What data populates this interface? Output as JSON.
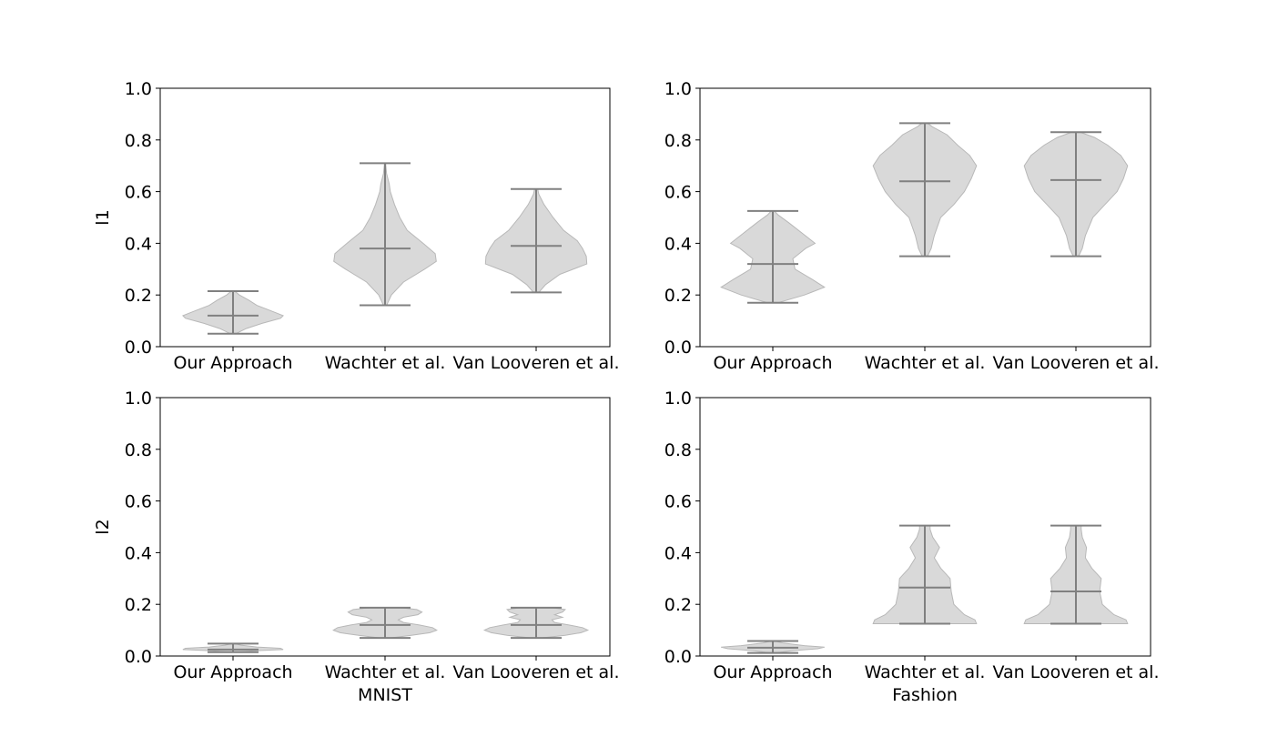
{
  "chart_data": [
    {
      "type": "violin",
      "row": 0,
      "col": 0,
      "categories": [
        "Our Approach",
        "Wachter et al.",
        "Van Looveren et al."
      ],
      "ylabel": "l1",
      "xlabel": "",
      "ylim": [
        0,
        1.0
      ],
      "yticks": [
        "0.0",
        "0.2",
        "0.4",
        "0.6",
        "0.8",
        "1.0"
      ],
      "series": [
        {
          "min": 0.05,
          "median": 0.12,
          "max": 0.215,
          "density": [
            [
              0.05,
              0.05
            ],
            [
              0.07,
              0.25
            ],
            [
              0.09,
              0.55
            ],
            [
              0.11,
              0.9
            ],
            [
              0.12,
              0.95
            ],
            [
              0.14,
              0.7
            ],
            [
              0.16,
              0.45
            ],
            [
              0.18,
              0.3
            ],
            [
              0.2,
              0.12
            ],
            [
              0.215,
              0.03
            ]
          ]
        },
        {
          "min": 0.16,
          "median": 0.38,
          "max": 0.71,
          "density": [
            [
              0.16,
              0.03
            ],
            [
              0.2,
              0.12
            ],
            [
              0.25,
              0.35
            ],
            [
              0.3,
              0.75
            ],
            [
              0.33,
              0.97
            ],
            [
              0.36,
              0.95
            ],
            [
              0.4,
              0.72
            ],
            [
              0.45,
              0.42
            ],
            [
              0.5,
              0.28
            ],
            [
              0.55,
              0.18
            ],
            [
              0.6,
              0.1
            ],
            [
              0.63,
              0.08
            ],
            [
              0.67,
              0.03
            ],
            [
              0.71,
              0.01
            ]
          ]
        },
        {
          "min": 0.21,
          "median": 0.39,
          "max": 0.61,
          "density": [
            [
              0.21,
              0.05
            ],
            [
              0.24,
              0.18
            ],
            [
              0.28,
              0.45
            ],
            [
              0.32,
              0.96
            ],
            [
              0.35,
              0.95
            ],
            [
              0.38,
              0.88
            ],
            [
              0.41,
              0.78
            ],
            [
              0.45,
              0.52
            ],
            [
              0.5,
              0.32
            ],
            [
              0.55,
              0.15
            ],
            [
              0.59,
              0.05
            ],
            [
              0.61,
              0.03
            ]
          ]
        }
      ]
    },
    {
      "type": "violin",
      "row": 0,
      "col": 1,
      "categories": [
        "Our Approach",
        "Wachter et al.",
        "Van Looveren et al."
      ],
      "ylabel": "",
      "xlabel": "",
      "ylim": [
        0,
        1.0
      ],
      "yticks": [
        "0.0",
        "0.2",
        "0.4",
        "0.6",
        "0.8",
        "1.0"
      ],
      "series": [
        {
          "min": 0.17,
          "median": 0.32,
          "max": 0.525,
          "density": [
            [
              0.17,
              0.1
            ],
            [
              0.2,
              0.6
            ],
            [
              0.23,
              0.98
            ],
            [
              0.26,
              0.75
            ],
            [
              0.3,
              0.42
            ],
            [
              0.34,
              0.38
            ],
            [
              0.38,
              0.62
            ],
            [
              0.4,
              0.8
            ],
            [
              0.44,
              0.55
            ],
            [
              0.48,
              0.3
            ],
            [
              0.51,
              0.1
            ],
            [
              0.525,
              0.03
            ]
          ]
        },
        {
          "min": 0.35,
          "median": 0.64,
          "max": 0.865,
          "density": [
            [
              0.35,
              0.05
            ],
            [
              0.38,
              0.12
            ],
            [
              0.43,
              0.18
            ],
            [
              0.5,
              0.3
            ],
            [
              0.55,
              0.55
            ],
            [
              0.6,
              0.75
            ],
            [
              0.65,
              0.88
            ],
            [
              0.7,
              0.98
            ],
            [
              0.74,
              0.85
            ],
            [
              0.78,
              0.62
            ],
            [
              0.82,
              0.42
            ],
            [
              0.85,
              0.15
            ],
            [
              0.865,
              0.05
            ]
          ]
        },
        {
          "min": 0.35,
          "median": 0.645,
          "max": 0.83,
          "density": [
            [
              0.35,
              0.05
            ],
            [
              0.38,
              0.12
            ],
            [
              0.43,
              0.18
            ],
            [
              0.5,
              0.32
            ],
            [
              0.55,
              0.55
            ],
            [
              0.6,
              0.78
            ],
            [
              0.65,
              0.9
            ],
            [
              0.7,
              0.98
            ],
            [
              0.74,
              0.85
            ],
            [
              0.78,
              0.6
            ],
            [
              0.81,
              0.35
            ],
            [
              0.83,
              0.08
            ]
          ]
        }
      ]
    },
    {
      "type": "violin",
      "row": 1,
      "col": 0,
      "categories": [
        "Our Approach",
        "Wachter et al.",
        "Van Looveren et al."
      ],
      "ylabel": "l2",
      "xlabel": "MNIST",
      "ylim": [
        0,
        1.0
      ],
      "yticks": [
        "0.0",
        "0.2",
        "0.4",
        "0.6",
        "0.8",
        "1.0"
      ],
      "series": [
        {
          "min": 0.015,
          "median": 0.025,
          "max": 0.048,
          "density": [
            [
              0.015,
              0.05
            ],
            [
              0.02,
              0.4
            ],
            [
              0.025,
              0.95
            ],
            [
              0.03,
              0.9
            ],
            [
              0.035,
              0.45
            ],
            [
              0.042,
              0.15
            ],
            [
              0.048,
              0.03
            ]
          ]
        },
        {
          "min": 0.07,
          "median": 0.12,
          "max": 0.187,
          "density": [
            [
              0.07,
              0.1
            ],
            [
              0.08,
              0.5
            ],
            [
              0.09,
              0.85
            ],
            [
              0.1,
              0.98
            ],
            [
              0.11,
              0.9
            ],
            [
              0.12,
              0.65
            ],
            [
              0.13,
              0.35
            ],
            [
              0.14,
              0.25
            ],
            [
              0.15,
              0.35
            ],
            [
              0.16,
              0.62
            ],
            [
              0.17,
              0.7
            ],
            [
              0.18,
              0.6
            ],
            [
              0.187,
              0.3
            ]
          ]
        },
        {
          "min": 0.07,
          "median": 0.12,
          "max": 0.187,
          "density": [
            [
              0.07,
              0.1
            ],
            [
              0.08,
              0.55
            ],
            [
              0.09,
              0.85
            ],
            [
              0.1,
              0.98
            ],
            [
              0.11,
              0.88
            ],
            [
              0.12,
              0.62
            ],
            [
              0.13,
              0.35
            ],
            [
              0.14,
              0.3
            ],
            [
              0.15,
              0.5
            ],
            [
              0.16,
              0.35
            ],
            [
              0.17,
              0.5
            ],
            [
              0.18,
              0.55
            ],
            [
              0.187,
              0.3
            ]
          ]
        }
      ]
    },
    {
      "type": "violin",
      "row": 1,
      "col": 1,
      "categories": [
        "Our Approach",
        "Wachter et al.",
        "Van Looveren et al."
      ],
      "ylabel": "",
      "xlabel": "Fashion",
      "ylim": [
        0,
        1.0
      ],
      "yticks": [
        "0.0",
        "0.2",
        "0.4",
        "0.6",
        "0.8",
        "1.0"
      ],
      "series": [
        {
          "min": 0.012,
          "median": 0.032,
          "max": 0.058,
          "density": [
            [
              0.012,
              0.05
            ],
            [
              0.02,
              0.35
            ],
            [
              0.028,
              0.85
            ],
            [
              0.034,
              0.98
            ],
            [
              0.04,
              0.6
            ],
            [
              0.05,
              0.2
            ],
            [
              0.058,
              0.03
            ]
          ]
        },
        {
          "min": 0.125,
          "median": 0.265,
          "max": 0.505,
          "density": [
            [
              0.125,
              0.98
            ],
            [
              0.14,
              0.95
            ],
            [
              0.16,
              0.75
            ],
            [
              0.2,
              0.55
            ],
            [
              0.25,
              0.5
            ],
            [
              0.3,
              0.48
            ],
            [
              0.34,
              0.3
            ],
            [
              0.38,
              0.18
            ],
            [
              0.42,
              0.28
            ],
            [
              0.46,
              0.15
            ],
            [
              0.49,
              0.1
            ],
            [
              0.505,
              0.1
            ]
          ]
        },
        {
          "min": 0.125,
          "median": 0.25,
          "max": 0.505,
          "density": [
            [
              0.125,
              0.98
            ],
            [
              0.14,
              0.95
            ],
            [
              0.16,
              0.72
            ],
            [
              0.2,
              0.5
            ],
            [
              0.25,
              0.45
            ],
            [
              0.3,
              0.48
            ],
            [
              0.34,
              0.3
            ],
            [
              0.38,
              0.18
            ],
            [
              0.42,
              0.2
            ],
            [
              0.46,
              0.12
            ],
            [
              0.49,
              0.1
            ],
            [
              0.505,
              0.1
            ]
          ]
        }
      ]
    }
  ]
}
